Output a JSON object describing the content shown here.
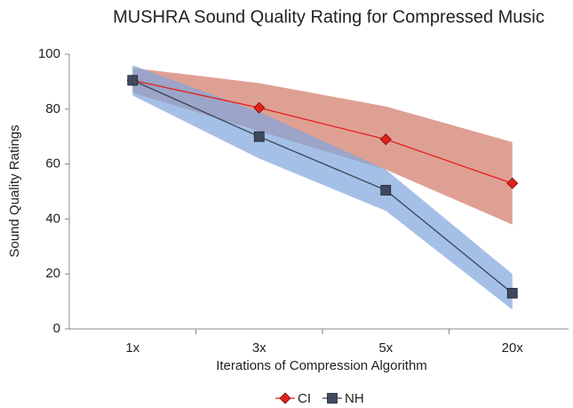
{
  "chart_data": {
    "type": "line",
    "title": "MUSHRA Sound Quality Rating for Compressed Music",
    "x_label": "Iterations of Compression Algorithm",
    "y_label": "Sound Quality Ratings",
    "categories": [
      "1x",
      "3x",
      "5x",
      "20x"
    ],
    "ylim": [
      0,
      100
    ],
    "yticks": [
      0,
      20,
      40,
      60,
      80,
      100
    ],
    "grid": false,
    "legend": "bottom",
    "series": [
      {
        "name": "CI",
        "color": "#e3211c",
        "marker": "diamond",
        "band_color": "#d27766",
        "values": [
          90.5,
          80.5,
          69,
          53
        ],
        "upper": [
          95,
          89.5,
          81,
          68
        ],
        "lower": [
          86,
          72,
          58,
          38
        ]
      },
      {
        "name": "NH",
        "color": "#3b4453",
        "marker": "square",
        "band_color": "#7fa5dd",
        "values": [
          90.5,
          70,
          50.5,
          13
        ],
        "upper": [
          96,
          79,
          58,
          20
        ],
        "lower": [
          85,
          62,
          43,
          7
        ]
      }
    ]
  }
}
